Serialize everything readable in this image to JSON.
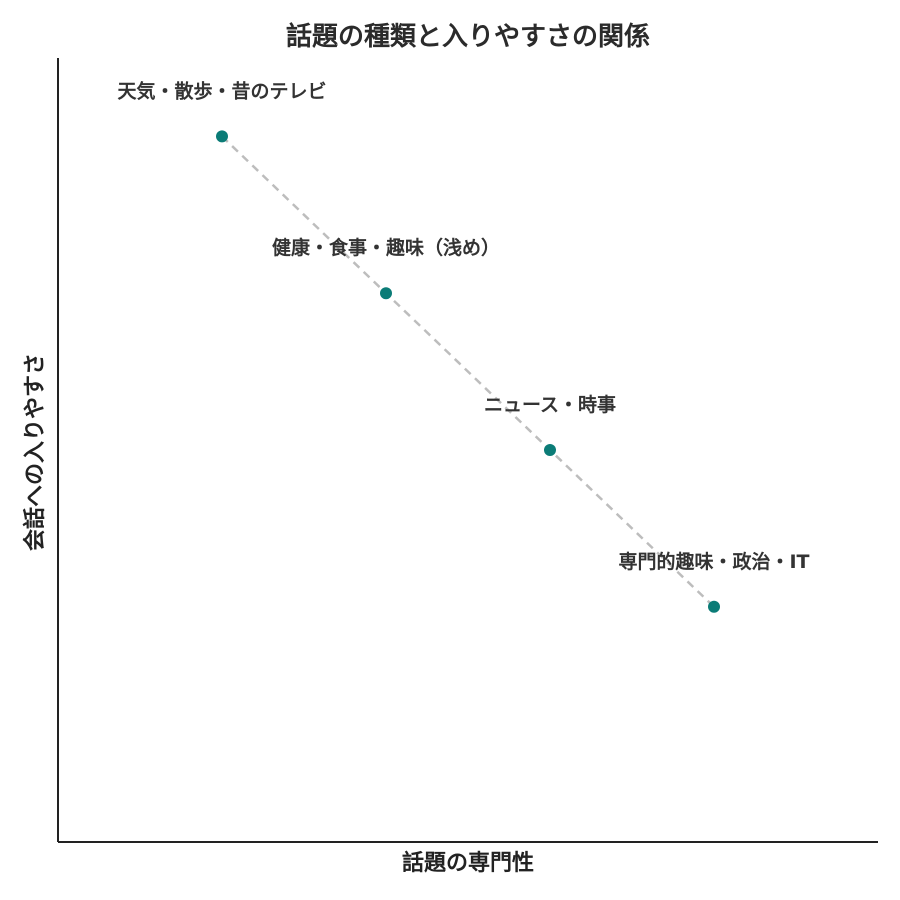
{
  "chart_data": {
    "type": "scatter",
    "title": "話題の種類と入りやすさの関係",
    "xlabel": "話題の専門性",
    "ylabel": "会話への入りやすさ",
    "xlim": [
      0,
      5
    ],
    "ylim": [
      0,
      5
    ],
    "grid": false,
    "legend": "none",
    "points": [
      {
        "label": "天気・散歩・昔のテレビ",
        "x": 1.0,
        "y": 4.5
      },
      {
        "label": "健康・食事・趣味（浅め）",
        "x": 2.0,
        "y": 3.5
      },
      {
        "label": "ニュース・時事",
        "x": 3.0,
        "y": 2.5
      },
      {
        "label": "専門的趣味・政治・IT",
        "x": 4.0,
        "y": 1.5
      }
    ],
    "trend_line": {
      "style": "dashed"
    }
  },
  "colors": {
    "point": "#0b7c77",
    "trend": "#bdbdbd",
    "axis": "#222222",
    "text": "#333333"
  }
}
